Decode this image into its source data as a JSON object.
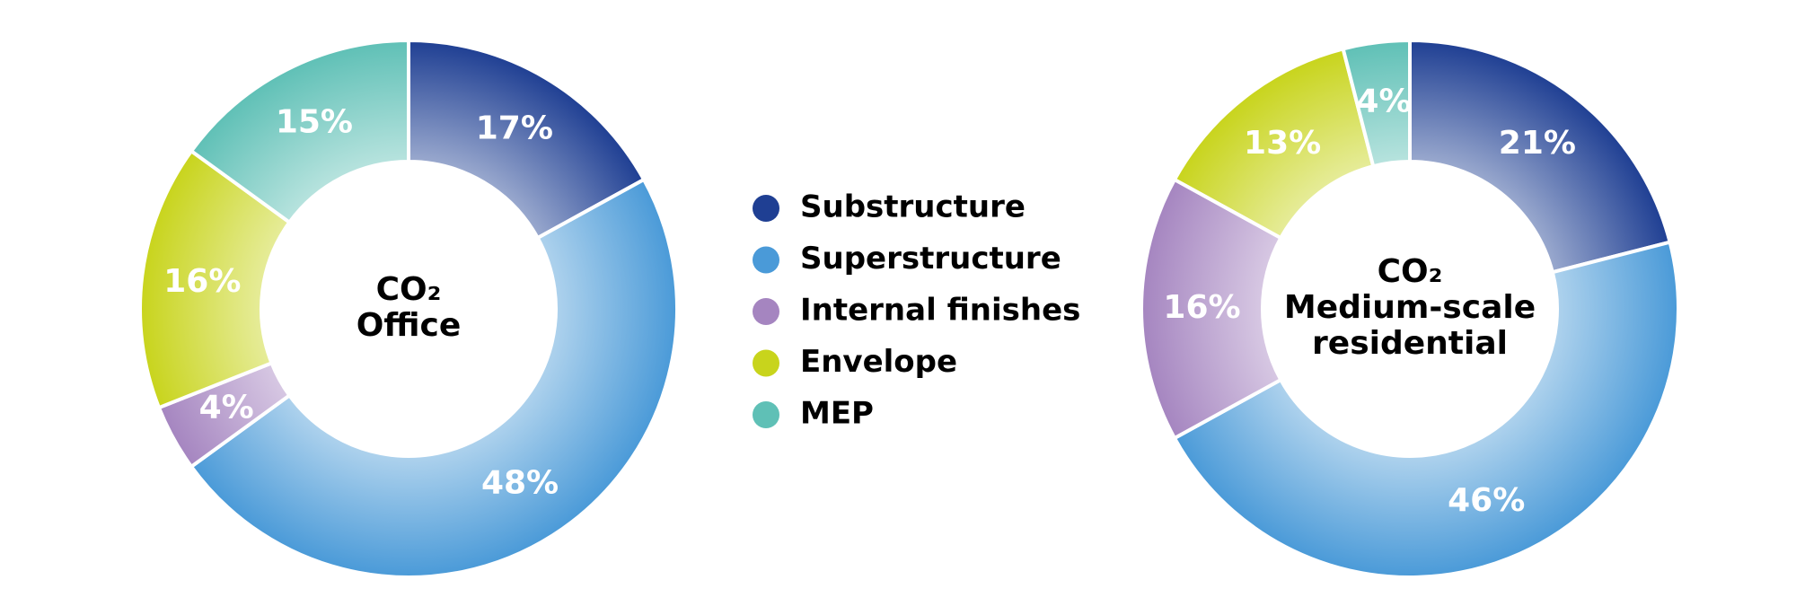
{
  "legend": {
    "items": [
      {
        "name": "Substructure",
        "color": "#1f3f93"
      },
      {
        "name": "Superstructure",
        "color": "#4a9ad8"
      },
      {
        "name": "Internal finishes",
        "color": "#a585c0"
      },
      {
        "name": "Envelope",
        "color": "#c8d41c"
      },
      {
        "name": "MEP",
        "color": "#5fc0b6"
      }
    ]
  },
  "chart_data": [
    {
      "type": "pie",
      "title": [
        "CO₂",
        "Office"
      ],
      "values": [
        17,
        48,
        4,
        16,
        15
      ],
      "value_labels": [
        "17%",
        "48%",
        "4%",
        "16%",
        "15%"
      ]
    },
    {
      "type": "pie",
      "title": [
        "CO₂",
        "Medium-scale",
        "residential"
      ],
      "values": [
        21,
        46,
        16,
        13,
        4
      ],
      "value_labels": [
        "21%",
        "46%",
        "16%",
        "13%",
        "4%"
      ]
    }
  ]
}
